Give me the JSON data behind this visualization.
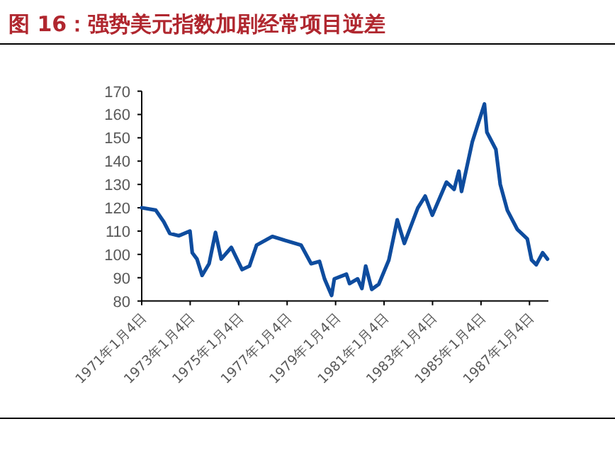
{
  "chart_data": {
    "type": "line",
    "title": "图 16：强势美元指数加剧经常项目逆差",
    "x": [
      "1971-01-04",
      "1971-08-01",
      "1971-12-01",
      "1972-03-01",
      "1972-07-15",
      "1973-01-01",
      "1973-02-05",
      "1973-04-15",
      "1973-07-01",
      "1973-10-15",
      "1974-01-20",
      "1974-04-15",
      "1974-09-15",
      "1975-02-25",
      "1975-06-15",
      "1975-10-01",
      "1976-05-25",
      "1976-12-01",
      "1977-08-01",
      "1978-01-01",
      "1978-05-05",
      "1978-07-20",
      "1978-11-05",
      "1978-12-15",
      "1979-06-15",
      "1979-08-01",
      "1979-12-01",
      "1980-02-05",
      "1980-04-01",
      "1980-07-01",
      "1980-10-15",
      "1981-03-15",
      "1981-07-20",
      "1981-11-05",
      "1982-05-25",
      "1982-09-15",
      "1983-01-01",
      "1983-08-01",
      "1983-11-25",
      "1984-02-05",
      "1984-03-15",
      "1984-08-25",
      "1985-02-25",
      "1985-04-01",
      "1985-08-15",
      "1985-10-20",
      "1986-02-05",
      "1986-07-01",
      "1986-12-01",
      "1987-02-05",
      "1987-04-15",
      "1987-07-20",
      "1987-10-01"
    ],
    "values": [
      120,
      119,
      114,
      109,
      108,
      110,
      100.7,
      98,
      91,
      96,
      109.4,
      98,
      103,
      93.5,
      95,
      104,
      107.7,
      106,
      104,
      96,
      97,
      89.5,
      82.4,
      89.5,
      91.5,
      87.5,
      89.5,
      85.4,
      95,
      85,
      87.2,
      97.6,
      114.8,
      104.7,
      119.9,
      125,
      116.8,
      131,
      127.9,
      135.7,
      127,
      148.3,
      164.5,
      152.4,
      145,
      130,
      118.9,
      110.8,
      106.7,
      97.6,
      95.6,
      100.7,
      98
    ],
    "color": "#0e4c9e",
    "marker": "none",
    "line_style": "solid",
    "grid": false,
    "xlim": [
      "1971-01-04",
      "1987-10-15"
    ],
    "xticks": [
      {
        "value": "1971-01-04",
        "label": "1971年1月4日"
      },
      {
        "value": "1973-01-04",
        "label": "1973年1月4日"
      },
      {
        "value": "1975-01-04",
        "label": "1975年1月4日"
      },
      {
        "value": "1977-01-04",
        "label": "1977年1月4日"
      },
      {
        "value": "1979-01-04",
        "label": "1979年1月4日"
      },
      {
        "value": "1981-01-04",
        "label": "1981年1月4日"
      },
      {
        "value": "1983-01-04",
        "label": "1983年1月4日"
      },
      {
        "value": "1985-01-04",
        "label": "1985年1月4日"
      },
      {
        "value": "1987-01-04",
        "label": "1987年1月4日"
      }
    ],
    "ylim": [
      80,
      170
    ],
    "yticks": [
      80,
      90,
      100,
      110,
      120,
      130,
      140,
      150,
      160,
      170
    ]
  }
}
